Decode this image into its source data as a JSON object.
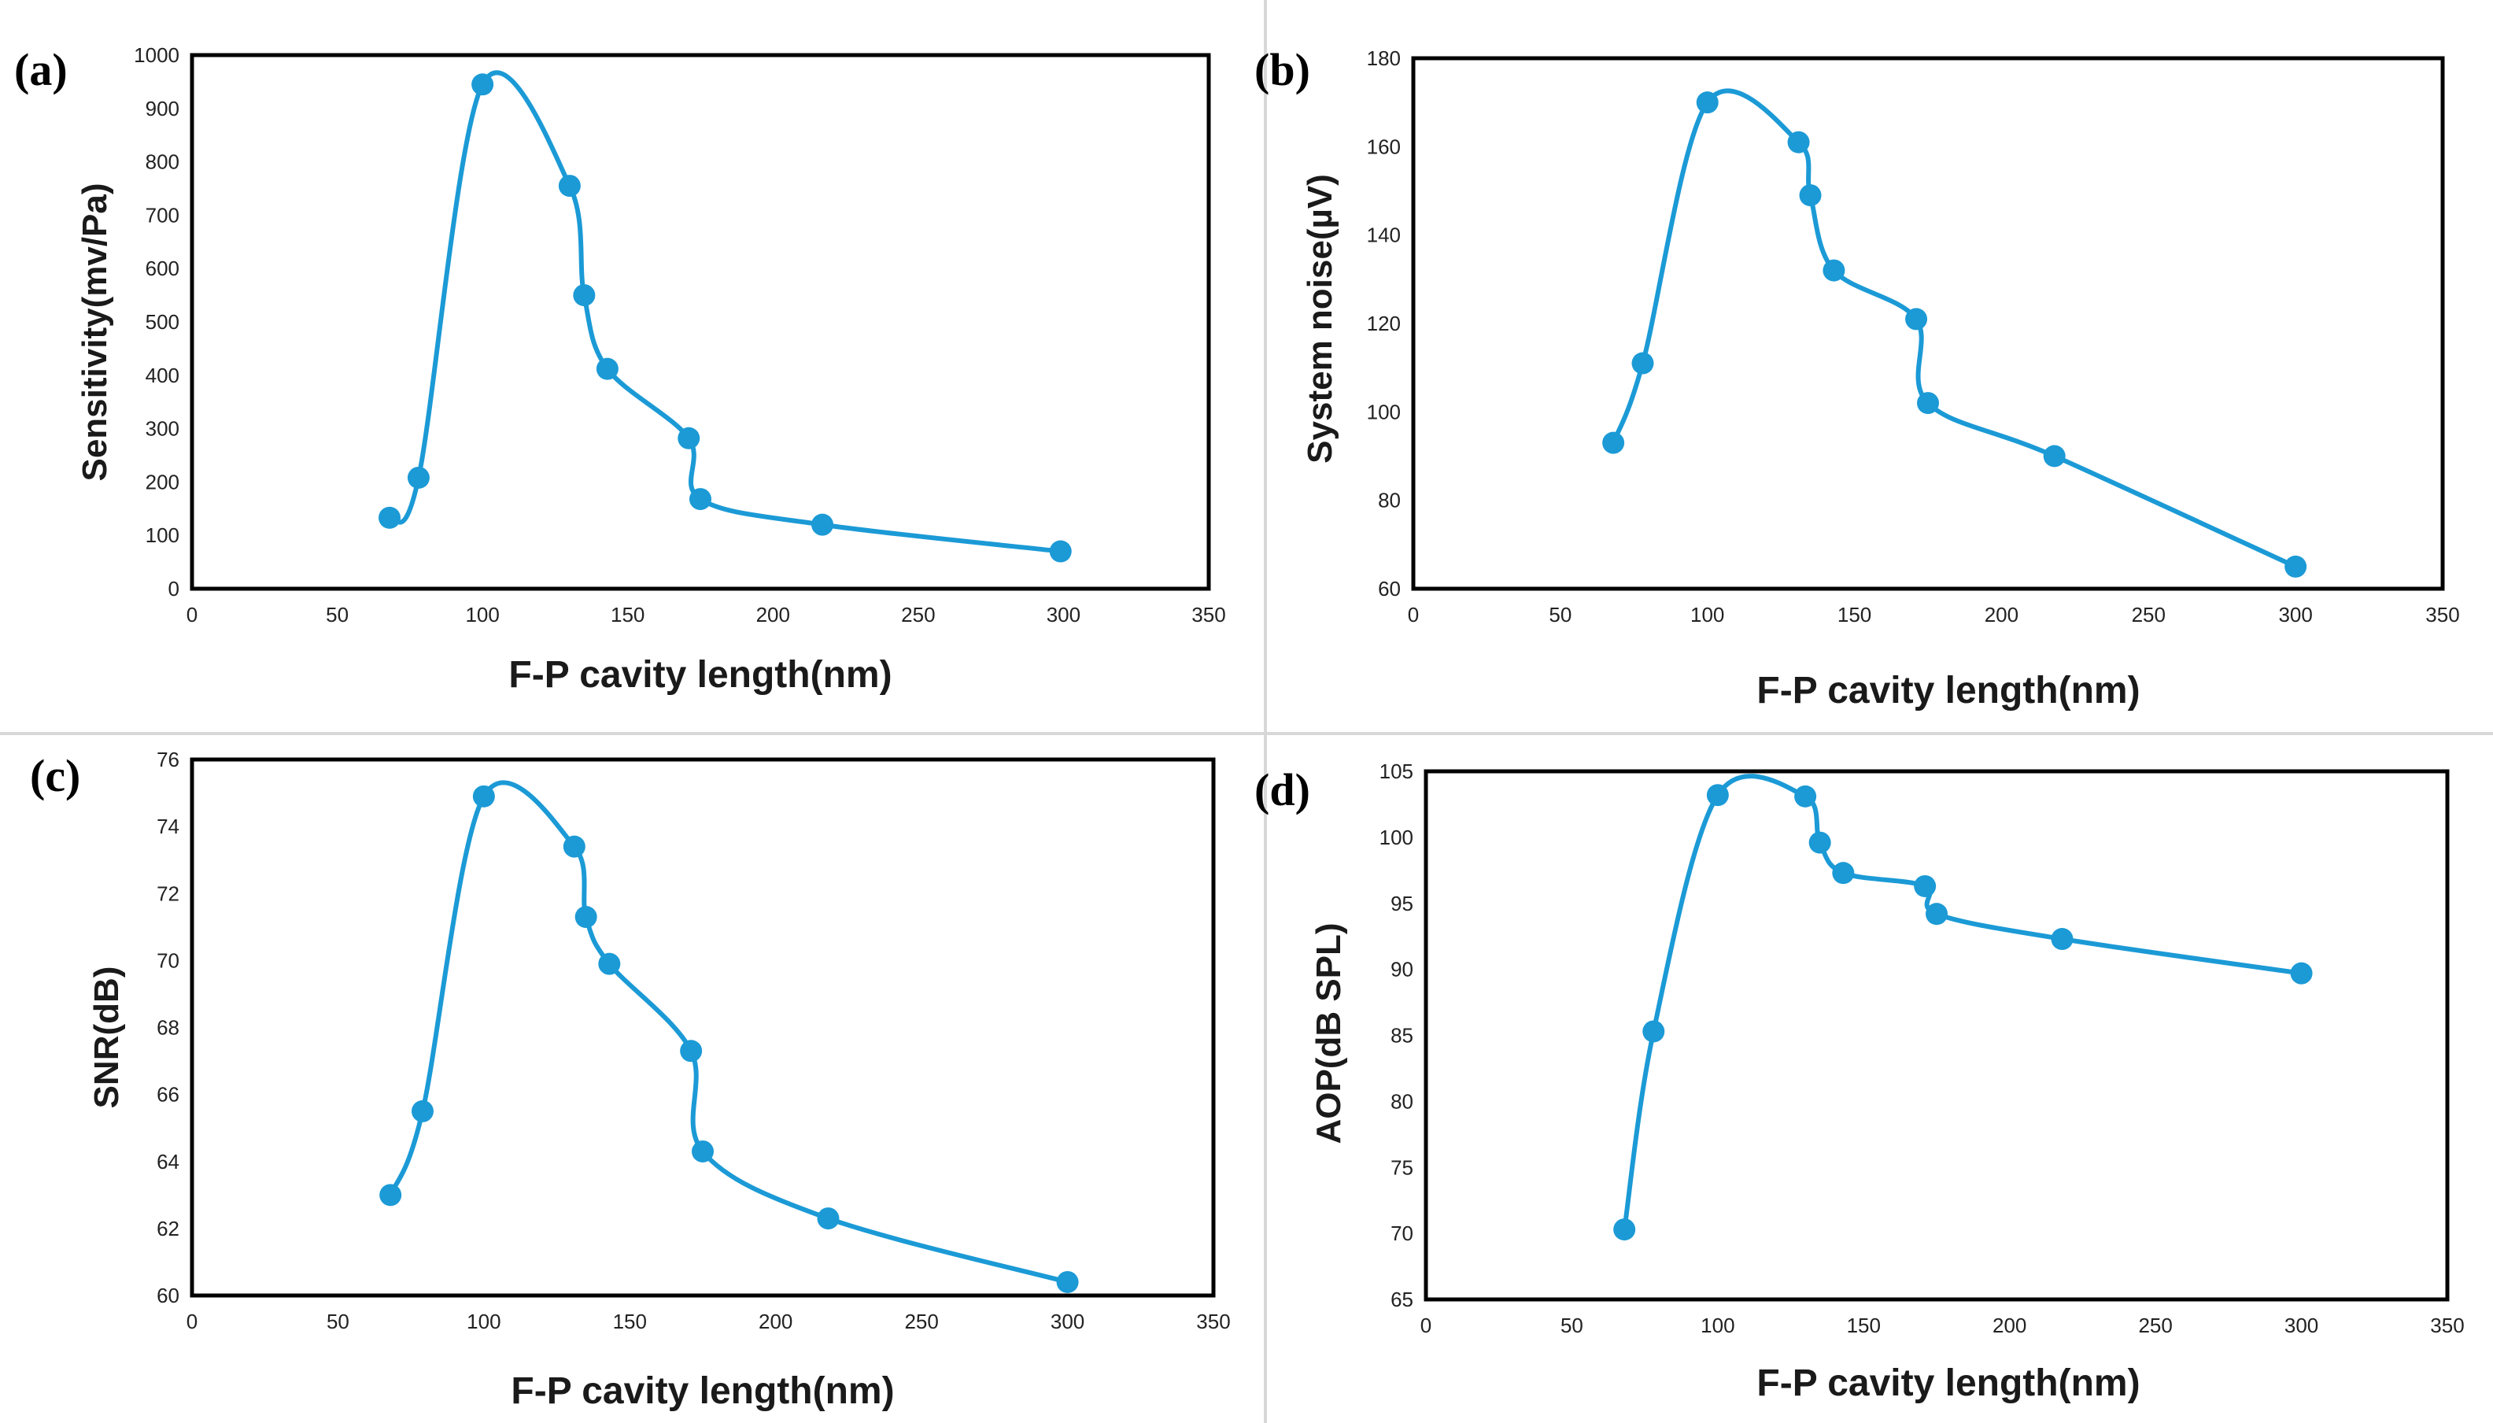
{
  "chart_data": [
    {
      "type": "line",
      "panel_label": "(a)",
      "xlabel": "F-P cavity length(nm)",
      "ylabel": "Sensitivity(mv/Pa)",
      "xlim": [
        0,
        350
      ],
      "ylim": [
        0,
        1000
      ],
      "xticks": [
        0,
        50,
        100,
        150,
        200,
        250,
        300,
        350
      ],
      "yticks": [
        0,
        100,
        200,
        300,
        400,
        500,
        600,
        700,
        800,
        900,
        1000
      ],
      "x": [
        68,
        78,
        100,
        130,
        135,
        143,
        171,
        175,
        217,
        299
      ],
      "y": [
        133,
        208,
        945,
        755,
        550,
        412,
        282,
        168,
        120,
        70
      ],
      "color": "#1b9ad6"
    },
    {
      "type": "line",
      "panel_label": "(b)",
      "xlabel": "F-P cavity length(nm)",
      "ylabel": "System noise(µV)",
      "xlim": [
        0,
        350
      ],
      "ylim": [
        60,
        180
      ],
      "xticks": [
        0,
        50,
        100,
        150,
        200,
        250,
        300,
        350
      ],
      "yticks": [
        60,
        80,
        100,
        120,
        140,
        160,
        180
      ],
      "x": [
        68,
        78,
        100,
        131,
        135,
        143,
        171,
        175,
        218,
        300
      ],
      "y": [
        93,
        111,
        170,
        161,
        149,
        132,
        121,
        102,
        90,
        65
      ],
      "color": "#1b9ad6"
    },
    {
      "type": "line",
      "panel_label": "(c)",
      "xlabel": "F-P cavity length(nm)",
      "ylabel": "SNR(dB)",
      "xlim": [
        0,
        350
      ],
      "ylim": [
        60,
        76
      ],
      "xticks": [
        0,
        50,
        100,
        150,
        200,
        250,
        300,
        350
      ],
      "yticks": [
        60,
        62,
        64,
        66,
        68,
        70,
        72,
        74,
        76
      ],
      "x": [
        68,
        79,
        100,
        131,
        135,
        143,
        171,
        175,
        218,
        300
      ],
      "y": [
        63.0,
        65.5,
        74.9,
        73.4,
        71.3,
        69.9,
        67.3,
        64.3,
        62.3,
        60.4
      ],
      "color": "#1b9ad6"
    },
    {
      "type": "line",
      "panel_label": "(d)",
      "xlabel": "F-P cavity length(nm)",
      "ylabel": "AOP(dB SPL)",
      "xlim": [
        0,
        350
      ],
      "ylim": [
        65,
        105
      ],
      "xticks": [
        0,
        50,
        100,
        150,
        200,
        250,
        300,
        350
      ],
      "yticks": [
        65,
        70,
        75,
        80,
        85,
        90,
        95,
        100,
        105
      ],
      "x": [
        68,
        78,
        100,
        130,
        135,
        143,
        171,
        175,
        218,
        300
      ],
      "y": [
        70.3,
        85.3,
        103.2,
        103.1,
        99.6,
        97.3,
        96.3,
        94.2,
        92.3,
        89.7
      ],
      "color": "#1b9ad6"
    }
  ]
}
